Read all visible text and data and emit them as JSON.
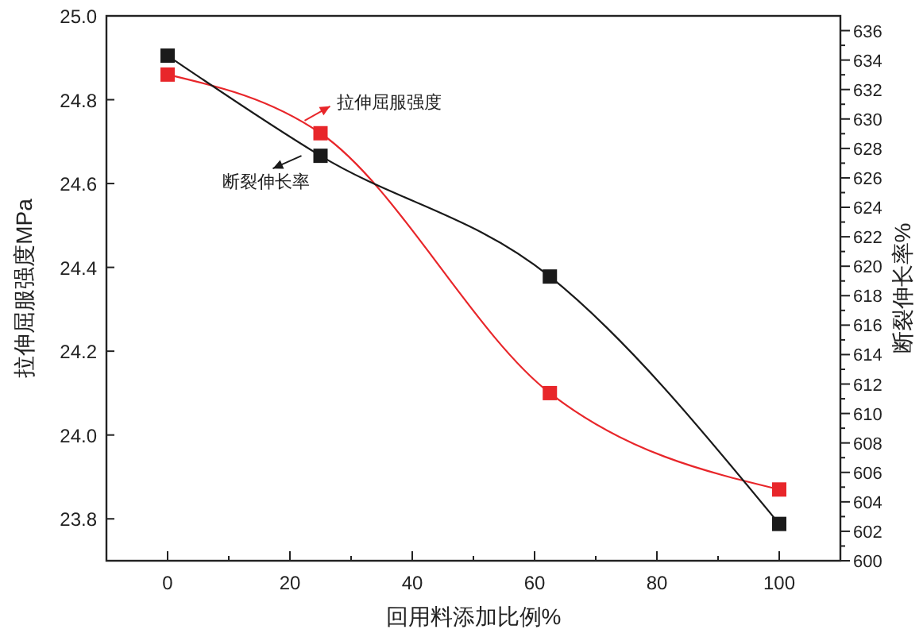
{
  "chart_data": {
    "type": "line",
    "xlabel": "回用料添加比例%",
    "ylabel": "拉伸屈服强度MPa",
    "y2label": "断裂伸长率%",
    "x": [
      0,
      25,
      62.5,
      100
    ],
    "series": [
      {
        "name": "拉伸屈服强度",
        "color": "#e8262a",
        "values": [
          24.86,
          24.72,
          24.1,
          23.87
        ]
      },
      {
        "name": "断裂伸长率",
        "color": "#1a1a1a",
        "values": [
          634.3,
          627.5,
          619.3,
          602.5
        ],
        "axis": "y2"
      }
    ],
    "xlim": [
      -10,
      110
    ],
    "xticks": [
      0,
      {
        "value": 10,
        "label": null
      },
      20,
      {
        "value": 30,
        "label": null
      },
      40,
      {
        "value": 50,
        "label": null
      },
      60,
      {
        "value": 70,
        "label": null
      },
      80,
      {
        "value": 90,
        "label": null
      },
      100
    ],
    "ylim": [
      23.7,
      25.0
    ],
    "yticks": [
      {
        "value": 23.8,
        "label": "23.8"
      },
      {
        "value": 24.0,
        "label": "24.0"
      },
      {
        "value": 24.2,
        "label": "24.2"
      },
      {
        "value": 24.4,
        "label": "24.4"
      },
      {
        "value": 24.6,
        "label": "24.6"
      },
      {
        "value": 24.8,
        "label": "24.8"
      },
      {
        "value": 25.0,
        "label": "25.0"
      }
    ],
    "y2lim": [
      600,
      637
    ],
    "y2ticks": [
      600,
      {
        "value": 601,
        "label": null
      },
      602,
      {
        "value": 603,
        "label": null
      },
      604,
      {
        "value": 605,
        "label": null
      },
      606,
      {
        "value": 607,
        "label": null
      },
      608,
      {
        "value": 609,
        "label": null
      },
      610,
      {
        "value": 611,
        "label": null
      },
      612,
      {
        "value": 613,
        "label": null
      },
      614,
      {
        "value": 615,
        "label": null
      },
      616,
      {
        "value": 617,
        "label": null
      },
      618,
      {
        "value": 619,
        "label": null
      },
      620,
      {
        "value": 621,
        "label": null
      },
      622,
      {
        "value": 623,
        "label": null
      },
      624,
      {
        "value": 625,
        "label": null
      },
      626,
      {
        "value": 627,
        "label": null
      },
      628,
      {
        "value": 629,
        "label": null
      },
      630,
      {
        "value": 631,
        "label": null
      },
      632,
      {
        "value": 633,
        "label": null
      },
      634,
      {
        "value": 635,
        "label": null
      },
      636
    ],
    "marker": "square",
    "line_style": "solid",
    "grid": false,
    "legend": "top left"
  }
}
